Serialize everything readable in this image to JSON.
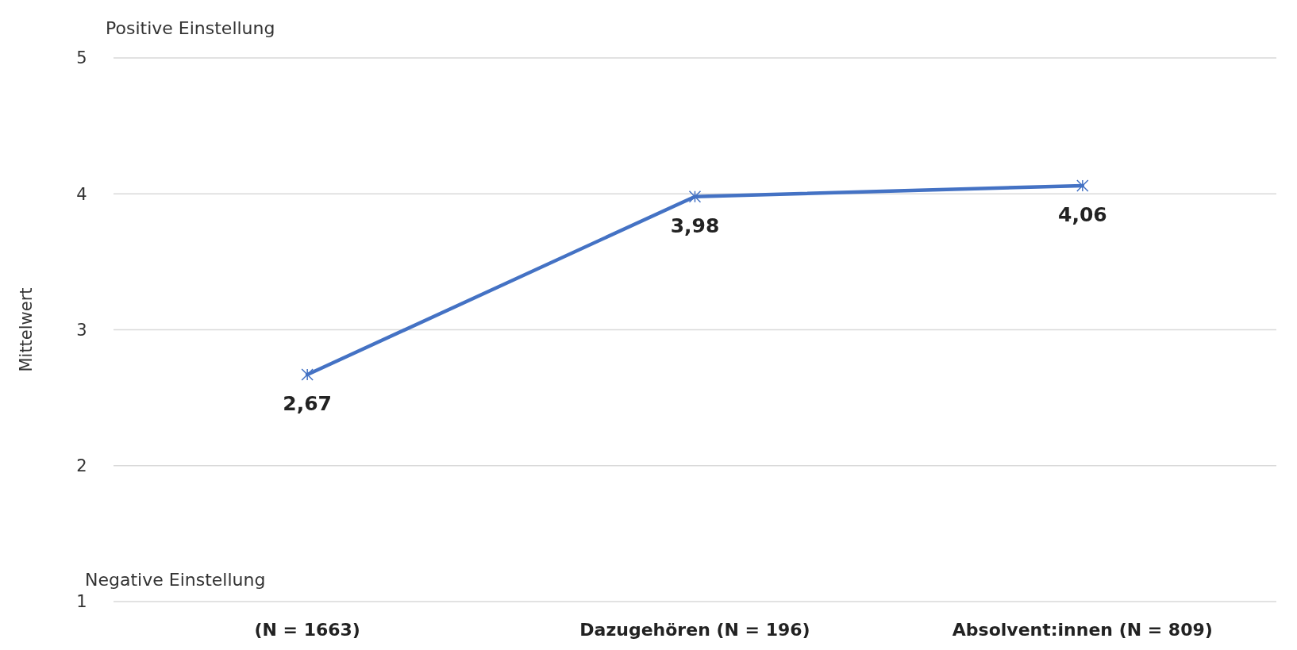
{
  "chart_data": {
    "type": "line",
    "ylabel": "Mittelwert",
    "categories": [
      "(N = 1663)",
      "Dazugehören (N = 196)",
      "Absolvent:innen (N = 809)"
    ],
    "series": [
      {
        "color": "#4472c4",
        "values": [
          2.67,
          3.98,
          4.06
        ],
        "value_labels": [
          "2,67",
          "3,98",
          "4,06"
        ]
      }
    ],
    "ylim": [
      1,
      5
    ],
    "yticks": [
      1,
      2,
      3,
      4,
      5
    ],
    "grid": "y",
    "marker": "cross",
    "line_style": "solid",
    "annotations": [
      "Positive Einstellung",
      "Negative Einstellung"
    ]
  }
}
